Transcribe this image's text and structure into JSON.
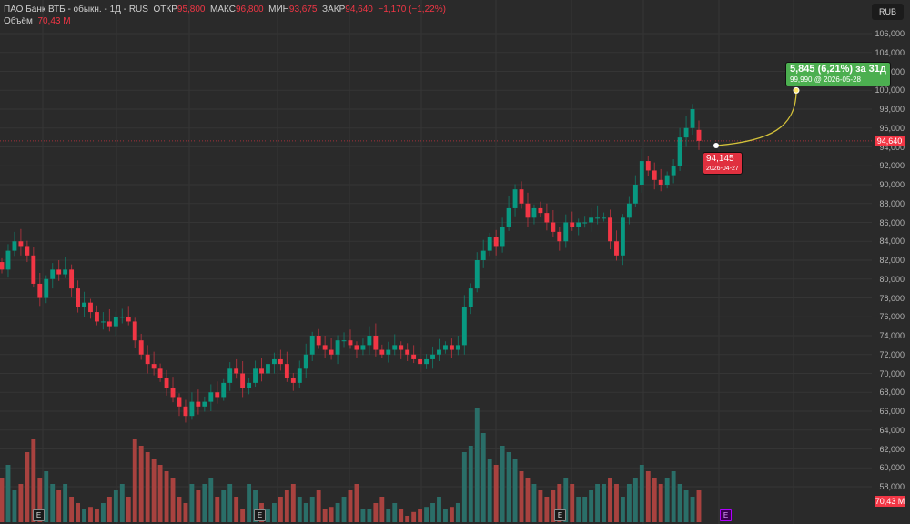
{
  "header": {
    "instrument": "ПАО Банк ВТБ - обыкн. - 1Д - RUS",
    "open_label": "ОТКР",
    "open_value": "95,800",
    "high_label": "МАКС",
    "high_value": "96,800",
    "low_label": "МИН",
    "low_value": "93,675",
    "close_label": "ЗАКР",
    "close_value": "94,640",
    "change": "−1,170 (−1,22%)",
    "volume_label": "Объём",
    "volume_value": "70,43 M"
  },
  "currency_button": "RUB",
  "price_axis": {
    "labels": [
      "106,000",
      "104,000",
      "102,000",
      "100,000",
      "98,000",
      "96,000",
      "94,000",
      "92,000",
      "90,000",
      "88,000",
      "86,000",
      "84,000",
      "82,000",
      "80,000",
      "78,000",
      "76,000",
      "74,000",
      "72,000",
      "70,000",
      "68,000",
      "66,000",
      "64,000",
      "62,000",
      "60,000",
      "58,000"
    ],
    "current_price_tag": "94,640",
    "volume_tag": "70,43 M"
  },
  "annotation": {
    "target_title": "5,845 (6,21%) за 31д",
    "target_sub": "99,990 @ 2026-05-28",
    "start_price": "94,145",
    "start_date": "2026-04-27"
  },
  "events": [
    {
      "label": "E",
      "x": 42
    },
    {
      "label": "E",
      "x": 285
    },
    {
      "label": "E",
      "x": 615
    },
    {
      "label": "E",
      "x": 797,
      "purple": true
    }
  ],
  "colors": {
    "background": "#2a2a2a",
    "grid": "#353535",
    "up": "#089981",
    "down": "#f23645",
    "up_volume": "#2a6e68",
    "down_volume": "#a8423f",
    "forecast_line": "#d4c23a",
    "target_bubble": "#4caf50",
    "start_bubble": "#e0303f"
  },
  "chart_data": {
    "type": "candlestick",
    "title": "ПАО Банк ВТБ - обыкн. - 1Д - RUS",
    "ylabel": "RUB",
    "ylim": [
      56000,
      108000
    ],
    "yticks": [
      58000,
      60000,
      62000,
      64000,
      66000,
      68000,
      70000,
      72000,
      74000,
      76000,
      78000,
      80000,
      82000,
      84000,
      86000,
      88000,
      90000,
      92000,
      94000,
      96000,
      98000,
      100000,
      102000,
      104000,
      106000
    ],
    "last": {
      "open": 95800,
      "high": 96800,
      "low": 93675,
      "close": 94640,
      "change": -1170,
      "change_pct": -1.22,
      "volume": "70.43M"
    },
    "forecast": {
      "from_price": 94145,
      "from_date": "2026-04-27",
      "to_price": 99990,
      "to_date": "2026-05-28",
      "change": 5845,
      "change_pct": 6.21,
      "days": 31
    },
    "closes": [
      81000,
      83000,
      84000,
      83500,
      82500,
      79500,
      78000,
      80000,
      81000,
      80500,
      81000,
      79000,
      77000,
      77500,
      76500,
      75500,
      75500,
      75000,
      76000,
      76000,
      75500,
      73500,
      72000,
      71000,
      70500,
      69500,
      68500,
      67500,
      66500,
      65500,
      67000,
      66500,
      67000,
      68000,
      67500,
      69000,
      70500,
      70000,
      68500,
      69000,
      70500,
      70000,
      71000,
      71500,
      71000,
      69500,
      69000,
      70500,
      72000,
      74000,
      73000,
      72500,
      72000,
      73500,
      73500,
      73000,
      72500,
      73000,
      74000,
      72500,
      72000,
      72500,
      73000,
      72500,
      72000,
      71500,
      71000,
      71500,
      72000,
      72500,
      73000,
      72500,
      73000,
      77000,
      79000,
      82000,
      83000,
      84500,
      83500,
      85500,
      87500,
      89500,
      88000,
      86500,
      87500,
      87000,
      86000,
      85000,
      84000,
      86000,
      85500,
      86000,
      86000,
      86500,
      86500,
      86500,
      84000,
      82500,
      86500,
      88000,
      90000,
      92500,
      91500,
      90500,
      90000,
      91000,
      92000,
      95000,
      96000,
      98000,
      94640
    ],
    "volumes_rel": [
      0.35,
      0.45,
      0.25,
      0.3,
      0.55,
      0.65,
      0.35,
      0.4,
      0.3,
      0.25,
      0.3,
      0.2,
      0.15,
      0.1,
      0.12,
      0.1,
      0.15,
      0.2,
      0.25,
      0.3,
      0.2,
      0.65,
      0.6,
      0.55,
      0.5,
      0.45,
      0.4,
      0.35,
      0.2,
      0.15,
      0.3,
      0.25,
      0.3,
      0.35,
      0.2,
      0.25,
      0.3,
      0.2,
      0.1,
      0.3,
      0.25,
      0.15,
      0.1,
      0.15,
      0.2,
      0.25,
      0.3,
      0.2,
      0.15,
      0.2,
      0.25,
      0.1,
      0.12,
      0.15,
      0.2,
      0.25,
      0.3,
      0.1,
      0.1,
      0.15,
      0.2,
      0.1,
      0.15,
      0.1,
      0.05,
      0.08,
      0.1,
      0.12,
      0.15,
      0.2,
      0.1,
      0.12,
      0.15,
      0.55,
      0.6,
      0.9,
      0.7,
      0.5,
      0.45,
      0.6,
      0.55,
      0.5,
      0.4,
      0.35,
      0.3,
      0.25,
      0.2,
      0.25,
      0.3,
      0.35,
      0.3,
      0.2,
      0.2,
      0.25,
      0.3,
      0.3,
      0.35,
      0.3,
      0.2,
      0.3,
      0.35,
      0.45,
      0.4,
      0.35,
      0.3,
      0.35,
      0.4,
      0.3,
      0.25,
      0.2,
      0.25
    ]
  }
}
